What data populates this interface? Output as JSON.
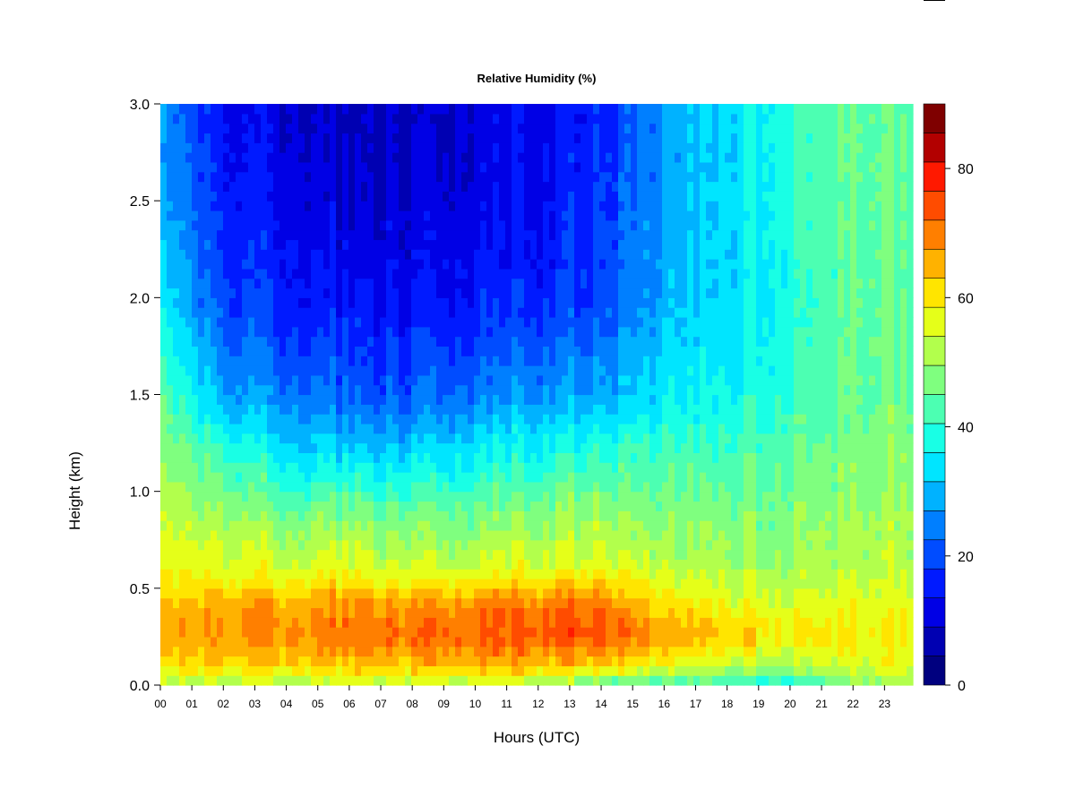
{
  "chart_data": {
    "type": "heatmap",
    "title": "Relative Humidity (%)",
    "xlabel": "Hours (UTC)",
    "ylabel": "Height (km)",
    "x_ticks": [
      "00",
      "01",
      "02",
      "03",
      "04",
      "05",
      "06",
      "07",
      "08",
      "09",
      "10",
      "11",
      "12",
      "13",
      "14",
      "15",
      "16",
      "17",
      "18",
      "19",
      "20",
      "21",
      "22",
      "23"
    ],
    "xlim": [
      0,
      23.9
    ],
    "y_ticks": [
      "0.0",
      "0.5",
      "1.0",
      "1.5",
      "2.0",
      "2.5",
      "3.0"
    ],
    "ylim": [
      0,
      3.0
    ],
    "colorbar": {
      "range": [
        0,
        90
      ],
      "step": 5,
      "tick_labels": [
        "0",
        "20",
        "40",
        "60",
        "80"
      ],
      "tick_values": [
        0,
        20,
        40,
        60,
        80
      ],
      "colors": [
        "#00007F",
        "#0000B2",
        "#0000E5",
        "#001AFF",
        "#004CFF",
        "#007FFF",
        "#00B2FF",
        "#00E5FF",
        "#19FFE5",
        "#4CFFB2",
        "#7FFF7F",
        "#B2FF4C",
        "#E5FF19",
        "#FFE500",
        "#FFB200",
        "#FF7F00",
        "#FF4C00",
        "#FF1900",
        "#B20000",
        "#7F0000"
      ]
    },
    "z_profile_hours": [
      0,
      2,
      4,
      6,
      7,
      9,
      12,
      14,
      16,
      18,
      20,
      22,
      23.9
    ],
    "z_profile_heights_km": [
      0.0,
      0.1,
      0.25,
      0.4,
      0.6,
      0.9,
      1.2,
      1.5,
      2.0,
      2.5,
      3.0
    ],
    "z_values_percent": [
      [
        58,
        68,
        75,
        72,
        65,
        60,
        55,
        50,
        40,
        33,
        30
      ],
      [
        56,
        68,
        76,
        74,
        63,
        55,
        45,
        32,
        22,
        18,
        16
      ],
      [
        57,
        70,
        77,
        75,
        62,
        52,
        38,
        28,
        18,
        14,
        12
      ],
      [
        58,
        70,
        78,
        76,
        63,
        52,
        36,
        24,
        15,
        10,
        8
      ],
      [
        58,
        70,
        78,
        75,
        60,
        50,
        35,
        22,
        14,
        10,
        8
      ],
      [
        58,
        72,
        80,
        77,
        60,
        50,
        38,
        26,
        16,
        12,
        10
      ],
      [
        56,
        72,
        82,
        80,
        63,
        53,
        42,
        30,
        18,
        15,
        14
      ],
      [
        48,
        70,
        84,
        80,
        64,
        55,
        45,
        32,
        22,
        20,
        18
      ],
      [
        45,
        62,
        73,
        67,
        58,
        52,
        46,
        38,
        32,
        30,
        30
      ],
      [
        44,
        58,
        70,
        64,
        57,
        52,
        46,
        40,
        36,
        36,
        36
      ],
      [
        44,
        57,
        68,
        63,
        57,
        53,
        50,
        46,
        43,
        45,
        46
      ],
      [
        52,
        62,
        66,
        63,
        58,
        55,
        52,
        50,
        50,
        50,
        50
      ],
      [
        60,
        63,
        66,
        64,
        60,
        57,
        54,
        52,
        50,
        50,
        50
      ]
    ]
  }
}
